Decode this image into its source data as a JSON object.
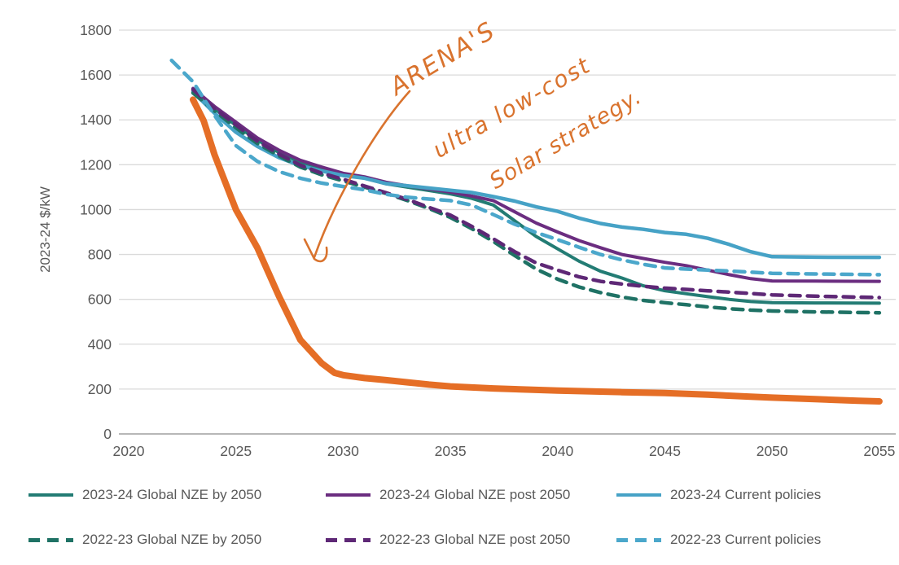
{
  "chart_data": {
    "type": "line",
    "title": "",
    "xlabel": "",
    "ylabel": "2023-24 $/kW",
    "xlim": [
      2020,
      2055
    ],
    "ylim": [
      0,
      1800
    ],
    "x_ticks": [
      2020,
      2025,
      2030,
      2035,
      2040,
      2045,
      2050,
      2055
    ],
    "y_ticks": [
      0,
      200,
      400,
      600,
      800,
      1000,
      1200,
      1400,
      1600,
      1800
    ],
    "grid": "horizontal",
    "legend_position": "bottom",
    "axis_text_color": "#595959",
    "gridline_color": "#dadada",
    "baseline_color": "#adadad",
    "series": [
      {
        "name": "2023-24 Global NZE by 2050",
        "color": "#237C74",
        "dash": "solid",
        "width": 4,
        "in_legend": true,
        "x": [
          2023,
          2024,
          2025,
          2026,
          2027,
          2028,
          2029,
          2030,
          2031,
          2032,
          2033,
          2034,
          2035,
          2036,
          2037,
          2038,
          2039,
          2040,
          2041,
          2042,
          2043,
          2044,
          2045,
          2046,
          2047,
          2048,
          2049,
          2050,
          2052,
          2055
        ],
        "values": [
          1530,
          1450,
          1375,
          1310,
          1255,
          1210,
          1180,
          1155,
          1140,
          1115,
          1100,
          1085,
          1070,
          1050,
          1020,
          950,
          880,
          825,
          770,
          725,
          695,
          660,
          638,
          625,
          612,
          600,
          590,
          585,
          584,
          583
        ]
      },
      {
        "name": "2023-24 Global NZE post 2050",
        "color": "#6B2D80",
        "dash": "solid",
        "width": 4,
        "in_legend": true,
        "x": [
          2023,
          2024,
          2025,
          2026,
          2027,
          2028,
          2029,
          2030,
          2031,
          2032,
          2033,
          2034,
          2035,
          2036,
          2037,
          2038,
          2039,
          2040,
          2041,
          2042,
          2043,
          2044,
          2045,
          2046,
          2047,
          2048,
          2049,
          2050,
          2052,
          2055
        ],
        "values": [
          1540,
          1460,
          1390,
          1320,
          1265,
          1220,
          1190,
          1162,
          1146,
          1122,
          1106,
          1092,
          1078,
          1060,
          1040,
          990,
          940,
          900,
          862,
          830,
          800,
          782,
          765,
          750,
          730,
          710,
          692,
          682,
          681,
          680
        ]
      },
      {
        "name": "2023-24 Current policies",
        "color": "#46A2C6",
        "dash": "solid",
        "width": 4.5,
        "in_legend": true,
        "x": [
          2023,
          2024,
          2025,
          2026,
          2027,
          2028,
          2029,
          2030,
          2031,
          2032,
          2033,
          2034,
          2035,
          2036,
          2037,
          2038,
          2039,
          2040,
          2041,
          2042,
          2043,
          2044,
          2045,
          2046,
          2047,
          2048,
          2049,
          2050,
          2052,
          2055
        ],
        "values": [
          1525,
          1430,
          1345,
          1282,
          1232,
          1196,
          1172,
          1152,
          1140,
          1116,
          1106,
          1096,
          1086,
          1076,
          1058,
          1038,
          1012,
          992,
          962,
          938,
          922,
          912,
          898,
          890,
          872,
          845,
          812,
          790,
          788,
          787
        ]
      },
      {
        "name": "2022-23 Global NZE by 2050",
        "color": "#1F7265",
        "dash": "dashed",
        "width": 4.5,
        "in_legend": true,
        "x": [
          2023,
          2024,
          2025,
          2026,
          2027,
          2028,
          2029,
          2030,
          2031,
          2032,
          2033,
          2034,
          2035,
          2036,
          2037,
          2038,
          2039,
          2040,
          2041,
          2042,
          2043,
          2044,
          2045,
          2046,
          2047,
          2048,
          2049,
          2050,
          2052,
          2055
        ],
        "values": [
          1520,
          1440,
          1365,
          1295,
          1240,
          1190,
          1155,
          1128,
          1100,
          1072,
          1040,
          1005,
          965,
          915,
          858,
          795,
          735,
          690,
          655,
          630,
          610,
          595,
          585,
          576,
          566,
          558,
          552,
          548,
          544,
          540
        ]
      },
      {
        "name": "2022-23 Global NZE post 2050",
        "color": "#5E2876",
        "dash": "dashed",
        "width": 4.5,
        "in_legend": true,
        "x": [
          2023,
          2024,
          2025,
          2026,
          2027,
          2028,
          2029,
          2030,
          2031,
          2032,
          2033,
          2034,
          2035,
          2036,
          2037,
          2038,
          2039,
          2040,
          2041,
          2042,
          2043,
          2044,
          2045,
          2046,
          2047,
          2048,
          2049,
          2050,
          2052,
          2055
        ],
        "values": [
          1535,
          1450,
          1378,
          1305,
          1248,
          1198,
          1162,
          1135,
          1105,
          1075,
          1045,
          1010,
          975,
          925,
          870,
          812,
          762,
          730,
          700,
          680,
          668,
          658,
          650,
          644,
          638,
          632,
          626,
          620,
          614,
          608
        ]
      },
      {
        "name": "2022-23 Current policies",
        "color": "#4BA7CB",
        "dash": "dashed",
        "width": 4.5,
        "in_legend": true,
        "x": [
          2022,
          2023,
          2024,
          2025,
          2026,
          2027,
          2028,
          2029,
          2030,
          2031,
          2032,
          2033,
          2034,
          2035,
          2036,
          2037,
          2038,
          2039,
          2040,
          2041,
          2042,
          2043,
          2044,
          2045,
          2046,
          2047,
          2048,
          2049,
          2050,
          2052,
          2055
        ],
        "values": [
          1665,
          1570,
          1420,
          1285,
          1215,
          1170,
          1140,
          1118,
          1103,
          1088,
          1068,
          1055,
          1047,
          1040,
          1020,
          978,
          935,
          898,
          866,
          832,
          800,
          776,
          756,
          740,
          735,
          730,
          726,
          721,
          716,
          713,
          710
        ]
      },
      {
        "name": "ARENA's ultra low-cost solar strategy",
        "color": "#E56E26",
        "dash": "solid",
        "width": 8,
        "in_legend": false,
        "x": [
          2023,
          2023.5,
          2024,
          2025,
          2026,
          2027,
          2028,
          2029,
          2029.6,
          2030,
          2031,
          2032,
          2033,
          2034,
          2035,
          2037,
          2040,
          2043,
          2045,
          2047,
          2049,
          2050,
          2052,
          2054,
          2055
        ],
        "values": [
          1490,
          1395,
          1245,
          1000,
          830,
          615,
          420,
          315,
          272,
          262,
          249,
          240,
          230,
          220,
          212,
          203,
          193,
          186,
          182,
          175,
          166,
          162,
          155,
          148,
          145
        ]
      }
    ]
  },
  "annotation": {
    "lines": [
      "ARENA'S",
      "ultra low-cost",
      "Solar strategy."
    ],
    "color": "#D9732E"
  },
  "legend": {
    "rows": [
      [
        0,
        1,
        2
      ],
      [
        3,
        4,
        5
      ]
    ]
  }
}
